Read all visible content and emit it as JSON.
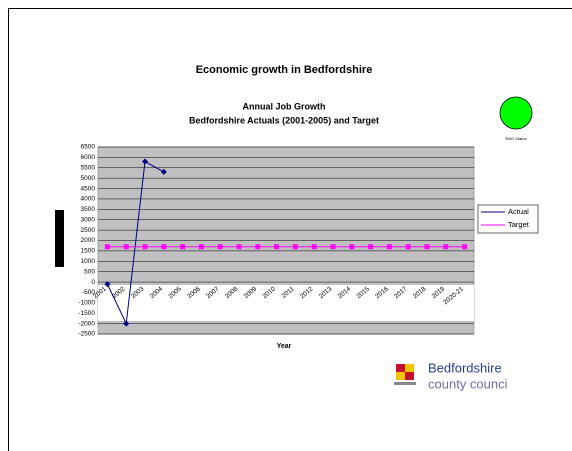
{
  "slide_title": "Economic growth in Bedfordshire",
  "rag_label": "RAG Status",
  "logo": {
    "line1": "Bedfordshire",
    "line2": "county counci"
  },
  "chart_data": {
    "type": "line",
    "title": "Annual Job Growth",
    "subtitle": "Bedfordshire Actuals (2001-2005) and Target",
    "x_label": "Year",
    "categories": [
      "2001",
      "2002",
      "2003",
      "2004",
      "2005",
      "2006",
      "2007",
      "2008",
      "2009",
      "2010",
      "2011",
      "2012",
      "2013",
      "2014",
      "2015",
      "2016",
      "2017",
      "2018",
      "2019",
      "2020-21"
    ],
    "series": [
      {
        "name": "Actual",
        "color": "#000080",
        "marker": "diamond",
        "values": [
          -100,
          -2000,
          5800,
          5300,
          null,
          null,
          null,
          null,
          null,
          null,
          null,
          null,
          null,
          null,
          null,
          null,
          null,
          null,
          null,
          null
        ]
      },
      {
        "name": "Target",
        "color": "#ff00ff",
        "marker": "square",
        "values": [
          1700,
          1700,
          1700,
          1700,
          1700,
          1700,
          1700,
          1700,
          1700,
          1700,
          1700,
          1700,
          1700,
          1700,
          1700,
          1700,
          1700,
          1700,
          1700,
          1700
        ]
      }
    ],
    "ylim": [
      -2500,
      6500
    ],
    "yticks": [
      -2500,
      -2000,
      -1500,
      -1000,
      -500,
      0,
      500,
      1000,
      1500,
      2000,
      2500,
      3000,
      3500,
      4000,
      4500,
      5000,
      5500,
      6000,
      6500
    ],
    "grid": true,
    "legend": "right"
  }
}
